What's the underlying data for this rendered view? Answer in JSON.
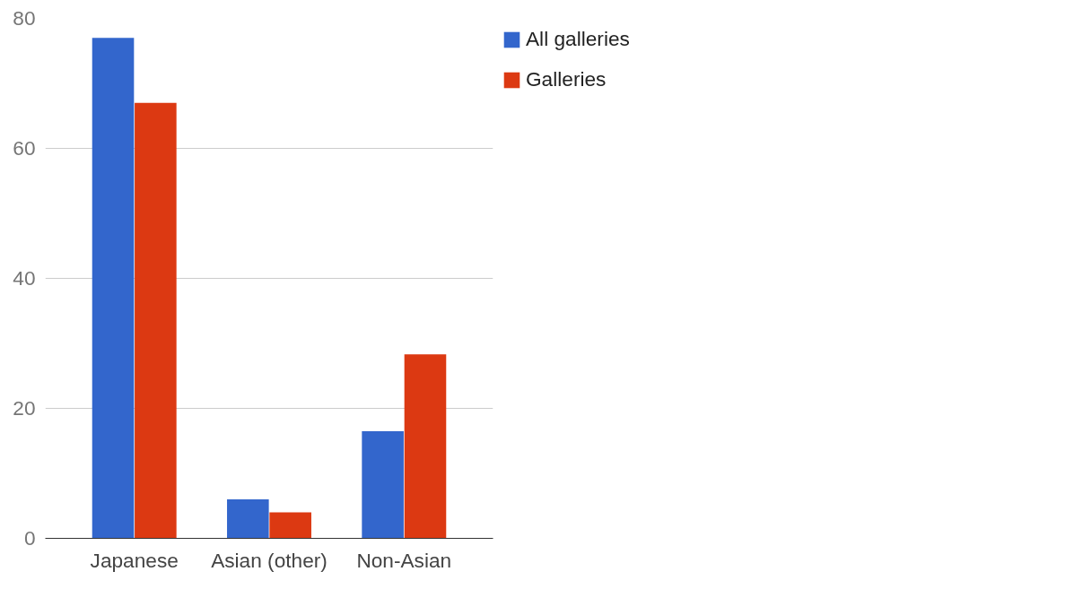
{
  "chart_data": {
    "type": "bar",
    "categories": [
      "Japanese",
      "Asian (other)",
      "Non-Asian"
    ],
    "series": [
      {
        "name": "All galleries",
        "color": "#3366cc",
        "values": [
          77,
          6,
          16.5
        ]
      },
      {
        "name": "Galleries",
        "color": "#dc3912",
        "values": [
          67,
          4,
          28.3
        ]
      }
    ],
    "ylim": [
      0,
      80
    ],
    "yticks": [
      0,
      20,
      40,
      60,
      80
    ],
    "grid": "y",
    "legend": "right"
  }
}
